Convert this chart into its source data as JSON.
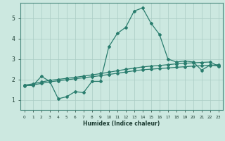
{
  "title": "",
  "xlabel": "Humidex (Indice chaleur)",
  "ylabel": "",
  "xlim": [
    -0.5,
    23.5
  ],
  "ylim": [
    0.5,
    5.75
  ],
  "yticks": [
    1,
    2,
    3,
    4,
    5
  ],
  "xticks": [
    0,
    1,
    2,
    3,
    4,
    5,
    6,
    7,
    8,
    9,
    10,
    11,
    12,
    13,
    14,
    15,
    16,
    17,
    18,
    19,
    20,
    21,
    22,
    23
  ],
  "bg_color": "#cce8e0",
  "line_color": "#2a7d6e",
  "grid_color": "#aaccc4",
  "line1_y": [
    1.7,
    1.7,
    2.15,
    1.9,
    1.05,
    1.15,
    1.4,
    1.35,
    1.9,
    1.9,
    3.6,
    4.25,
    4.55,
    5.35,
    5.5,
    4.75,
    4.2,
    3.0,
    2.85,
    2.9,
    2.85,
    2.45,
    2.7,
    2.65
  ],
  "line2_y": [
    1.72,
    1.78,
    1.87,
    1.95,
    2.0,
    2.05,
    2.1,
    2.16,
    2.22,
    2.28,
    2.35,
    2.42,
    2.49,
    2.55,
    2.61,
    2.65,
    2.68,
    2.72,
    2.76,
    2.79,
    2.81,
    2.83,
    2.85,
    2.65
  ],
  "line3_y": [
    1.68,
    1.73,
    1.8,
    1.88,
    1.93,
    1.98,
    2.03,
    2.08,
    2.13,
    2.18,
    2.24,
    2.3,
    2.36,
    2.42,
    2.47,
    2.5,
    2.53,
    2.56,
    2.59,
    2.62,
    2.65,
    2.67,
    2.69,
    2.72
  ]
}
